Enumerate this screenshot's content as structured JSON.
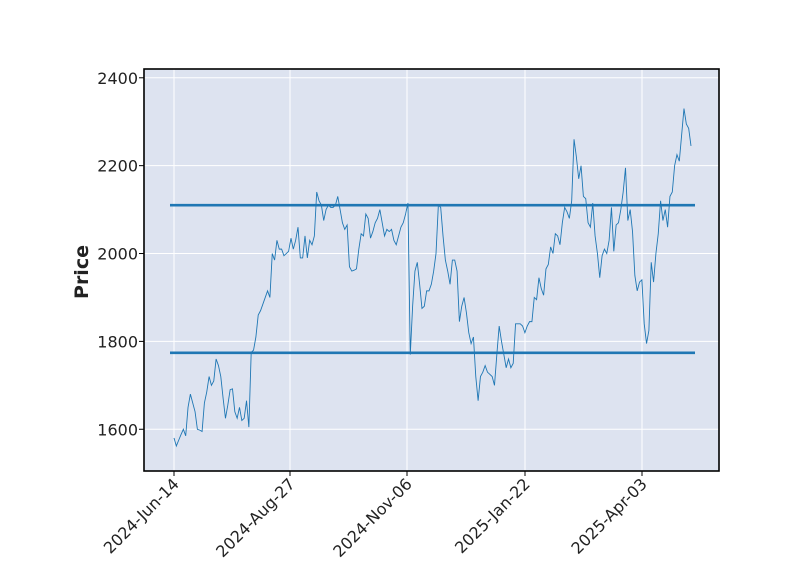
{
  "chart_data": {
    "type": "line",
    "title": "",
    "xlabel": "",
    "ylabel": "Price",
    "ylim": [
      1505,
      2420
    ],
    "x_tick_labels": [
      "2024-Jun-14",
      "2024-Aug-27",
      "2024-Nov-06",
      "2025-Jan-22",
      "2025-Apr-03"
    ],
    "y_ticks": [
      1600,
      1800,
      2000,
      2200,
      2400
    ],
    "grid": true,
    "legend": "none",
    "colors": {
      "background": "#dde3f0",
      "line": "#1f77b4",
      "hlines": "#1f77b4",
      "grid": "#ffffff"
    },
    "horizontal_lines": [
      2110,
      1774
    ],
    "series": [
      {
        "values": [
          1580,
          1562,
          1575,
          1588,
          1600,
          1585,
          1650,
          1680,
          1660,
          1640,
          1600,
          1598,
          1595,
          1660,
          1685,
          1720,
          1700,
          1710,
          1760,
          1745,
          1720,
          1670,
          1625,
          1655,
          1690,
          1692,
          1640,
          1625,
          1650,
          1620,
          1625,
          1665,
          1605,
          1775,
          1780,
          1810,
          1860,
          1870,
          1885,
          1900,
          1915,
          1900,
          2000,
          1985,
          2030,
          2010,
          2010,
          1995,
          2000,
          2005,
          2035,
          2010,
          2030,
          2060,
          1990,
          1990,
          2040,
          1990,
          2030,
          2020,
          2040,
          2140,
          2120,
          2110,
          2075,
          2100,
          2110,
          2105,
          2105,
          2110,
          2130,
          2100,
          2070,
          2055,
          2065,
          1970,
          1960,
          1962,
          1965,
          2010,
          2045,
          2040,
          2090,
          2080,
          2035,
          2050,
          2070,
          2080,
          2100,
          2070,
          2040,
          2055,
          2050,
          2055,
          2030,
          2020,
          2040,
          2060,
          2070,
          2090,
          2115,
          1770,
          1880,
          1960,
          1980,
          1930,
          1875,
          1880,
          1915,
          1915,
          1930,
          1960,
          2000,
          2110,
          2105,
          2040,
          1985,
          1960,
          1930,
          1985,
          1985,
          1960,
          1845,
          1880,
          1900,
          1865,
          1820,
          1795,
          1810,
          1720,
          1665,
          1720,
          1730,
          1745,
          1730,
          1725,
          1720,
          1700,
          1770,
          1835,
          1800,
          1770,
          1740,
          1760,
          1740,
          1750,
          1840,
          1840,
          1840,
          1835,
          1820,
          1835,
          1845,
          1845,
          1900,
          1895,
          1945,
          1920,
          1905,
          1965,
          1975,
          2015,
          2000,
          2045,
          2040,
          2020,
          2070,
          2105,
          2095,
          2080,
          2120,
          2260,
          2220,
          2170,
          2200,
          2130,
          2125,
          2070,
          2060,
          2115,
          2040,
          2000,
          1945,
          1995,
          2010,
          2000,
          2030,
          2105,
          2005,
          2065,
          2070,
          2100,
          2140,
          2195,
          2075,
          2100,
          2050,
          1950,
          1915,
          1935,
          1940,
          1840,
          1795,
          1825,
          1980,
          1935,
          2000,
          2045,
          2120,
          2075,
          2100,
          2060,
          2130,
          2140,
          2200,
          2225,
          2210,
          2270,
          2330,
          2295,
          2285,
          2245
        ]
      }
    ]
  }
}
